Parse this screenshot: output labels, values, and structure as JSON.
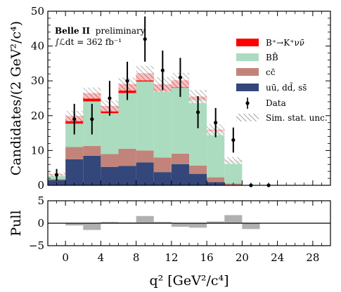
{
  "chart_data": [
    {
      "type": "stacked-histogram",
      "annotation": {
        "experiment": "Belle II",
        "status": "preliminary",
        "luminosity": "∫ℒdt = 362 fb⁻¹"
      },
      "ylabel": "Candidates/(2 GeV²/c⁴)",
      "xlabel": "q² [GeV²/c⁴]",
      "xlim": [
        -2,
        30
      ],
      "ylim": [
        0,
        50
      ],
      "x_ticks": [
        0,
        4,
        8,
        12,
        16,
        20,
        24,
        28
      ],
      "y_ticks": [
        0,
        10,
        20,
        30,
        40,
        50
      ],
      "legend_position": "right",
      "bin_edges": [
        -2,
        0,
        2,
        4,
        6,
        8,
        10,
        12,
        14,
        16,
        18,
        20,
        22,
        24,
        26,
        28,
        30
      ],
      "series": [
        {
          "name": "uū, dd̄, ss̄",
          "color": "#34477a",
          "values": [
            1.5,
            7.5,
            8.5,
            5.3,
            5.6,
            6.6,
            3.8,
            6.1,
            3.3,
            0.9,
            0.1,
            0,
            0,
            0,
            0,
            0
          ]
        },
        {
          "name": "cc̄",
          "color": "#c2847a",
          "values": [
            0.3,
            3.5,
            2.8,
            3.7,
            4.9,
            3.4,
            4.2,
            3.0,
            2.4,
            1.4,
            0.4,
            0,
            0,
            0,
            0,
            0
          ]
        },
        {
          "name": "BB̄",
          "color": "#abdcbf",
          "values": [
            1.2,
            6.7,
            12.8,
            11.7,
            16.0,
            19.8,
            19.0,
            18.9,
            18.8,
            13.2,
            6.5,
            0,
            0,
            0,
            0,
            0
          ]
        },
        {
          "name": "B⁺→K⁺νν̄",
          "color": "#ff0000",
          "values": [
            0.2,
            2.2,
            2.4,
            2.1,
            2.6,
            2.4,
            2.0,
            2.2,
            1.0,
            0.5,
            0.1,
            0,
            0,
            0,
            0,
            0
          ]
        }
      ],
      "sim_stat_unc": {
        "name": "Sim. stat. unc.",
        "values": [
          0.5,
          1.5,
          1.6,
          1.6,
          1.9,
          2.1,
          2.1,
          2.1,
          1.9,
          1.6,
          1.0,
          0,
          0,
          0,
          0,
          0
        ]
      },
      "data": {
        "name": "Data",
        "x": [
          -1,
          1,
          3,
          5,
          7,
          9,
          11,
          13,
          15,
          17,
          19,
          21,
          23
        ],
        "y": [
          3,
          19,
          19,
          25,
          30,
          42,
          33,
          31,
          21,
          18,
          13,
          0,
          0
        ],
        "err": [
          1.7,
          4.4,
          4.4,
          5.0,
          5.5,
          6.5,
          5.7,
          5.6,
          4.6,
          4.2,
          3.6,
          0,
          0
        ]
      }
    },
    {
      "type": "bar",
      "ylabel": "Pull",
      "xlim": [
        -2,
        30
      ],
      "ylim": [
        -5,
        5
      ],
      "y_ticks": [
        -5,
        0,
        5
      ],
      "bin_edges": [
        -2,
        0,
        2,
        4,
        6,
        8,
        10,
        12,
        14,
        16,
        18,
        20,
        22,
        24,
        26,
        28,
        30
      ],
      "values": [
        0,
        -0.5,
        -1.5,
        0.3,
        0.2,
        1.6,
        0.3,
        -0.8,
        -1.0,
        0.4,
        1.8,
        -1.3,
        0,
        0,
        0,
        0
      ],
      "color": "#b0b0b0"
    }
  ]
}
